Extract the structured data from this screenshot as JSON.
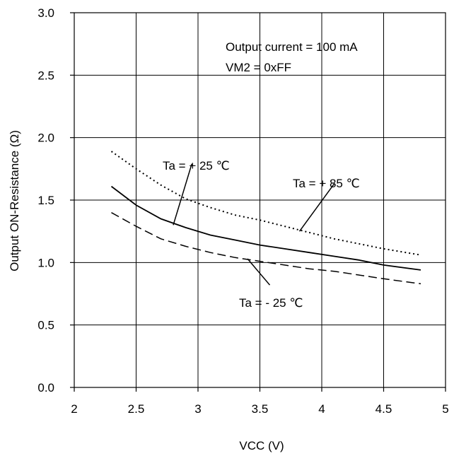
{
  "chart_data": {
    "type": "line",
    "xlabel": "VCC (V)",
    "ylabel": "Output ON-Resistance (Ω)",
    "xlim": [
      2,
      5
    ],
    "ylim": [
      0,
      3
    ],
    "xticks": [
      "2",
      "2.5",
      "3",
      "3.5",
      "4",
      "4.5",
      "5"
    ],
    "yticks": [
      "0.0",
      "0.5",
      "1.0",
      "1.5",
      "2.0",
      "2.5",
      "3.0"
    ],
    "grid": true,
    "conditions": [
      "Output current = 100 mA",
      "VM2 = 0xFF"
    ],
    "series": [
      {
        "name": "Ta = + 85 ℃",
        "style": "dotted",
        "x": [
          2.3,
          2.5,
          2.7,
          2.9,
          3.1,
          3.3,
          3.5,
          3.7,
          3.9,
          4.1,
          4.3,
          4.5,
          4.8
        ],
        "y": [
          1.89,
          1.75,
          1.62,
          1.51,
          1.44,
          1.38,
          1.34,
          1.29,
          1.24,
          1.19,
          1.15,
          1.11,
          1.06
        ]
      },
      {
        "name": "Ta = + 25 ℃",
        "style": "solid",
        "x": [
          2.3,
          2.5,
          2.7,
          2.9,
          3.1,
          3.3,
          3.5,
          3.7,
          3.9,
          4.1,
          4.3,
          4.5,
          4.8
        ],
        "y": [
          1.61,
          1.46,
          1.35,
          1.28,
          1.22,
          1.18,
          1.14,
          1.11,
          1.08,
          1.05,
          1.02,
          0.98,
          0.94
        ]
      },
      {
        "name": "Ta = - 25 ℃",
        "style": "dashed",
        "x": [
          2.3,
          2.5,
          2.7,
          2.9,
          3.1,
          3.3,
          3.5,
          3.7,
          3.9,
          4.1,
          4.3,
          4.5,
          4.8
        ],
        "y": [
          1.4,
          1.29,
          1.19,
          1.13,
          1.08,
          1.04,
          1.01,
          0.98,
          0.95,
          0.93,
          0.9,
          0.87,
          0.83
        ]
      }
    ],
    "annotations": [
      {
        "text": "Ta = + 25 ℃",
        "series_index": 1
      },
      {
        "text": "Ta = + 85 ℃",
        "series_index": 0
      },
      {
        "text": "Ta = - 25 ℃",
        "series_index": 2
      }
    ]
  }
}
